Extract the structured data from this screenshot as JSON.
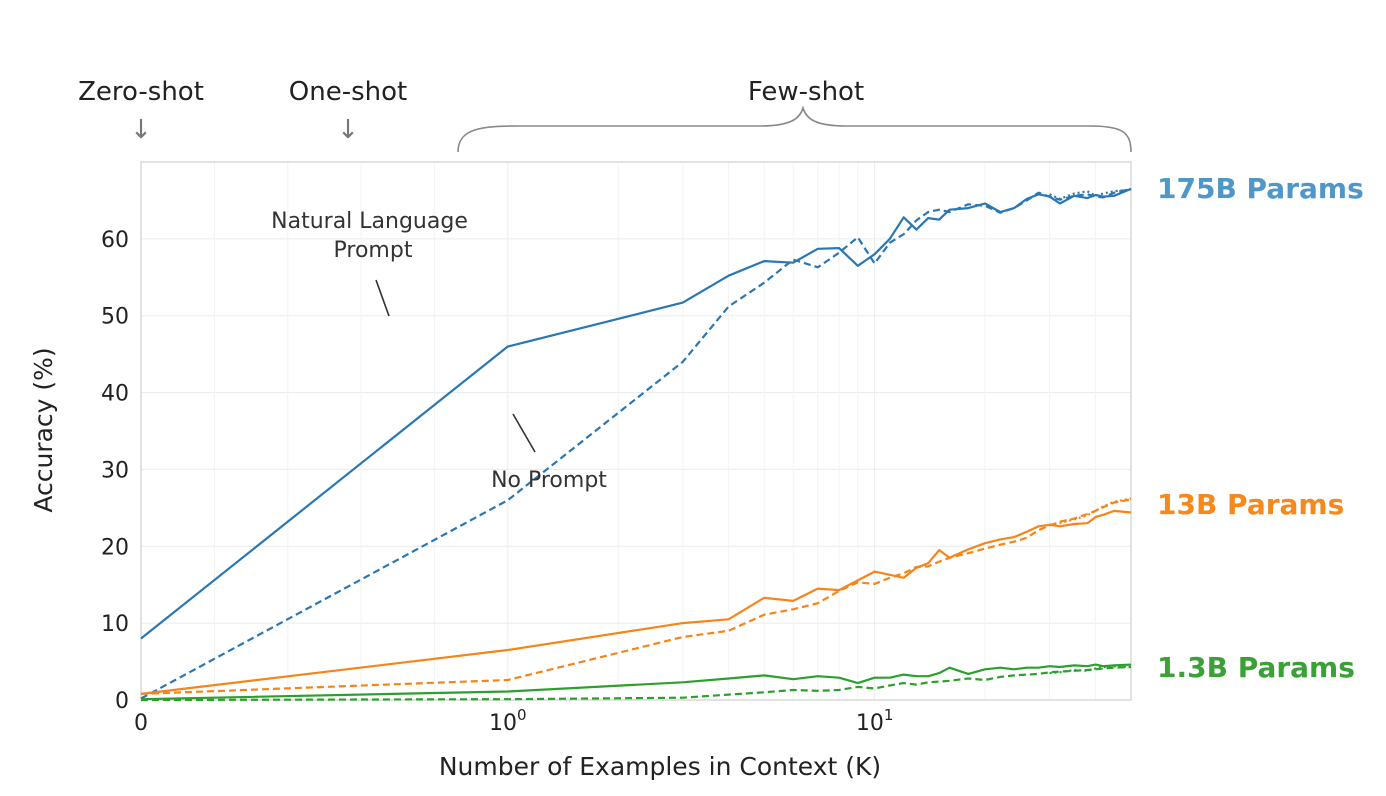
{
  "chart_data": {
    "type": "line",
    "xlabel": "Number of Examples in Context  (K)",
    "ylabel": "Accuracy (%)",
    "x_scale": "symlog",
    "xlim": [
      0,
      50
    ],
    "ylim": [
      0,
      70
    ],
    "y_ticks": [
      0,
      10,
      20,
      30,
      40,
      50,
      60
    ],
    "x_ticks": [
      {
        "value": 0,
        "label": "0",
        "exp": ""
      },
      {
        "value": 1,
        "label": "10",
        "exp": "0"
      },
      {
        "value": 10,
        "label": "10",
        "exp": "1"
      }
    ],
    "grid": true,
    "regions": [
      {
        "label": "Zero-shot",
        "marker": "↓"
      },
      {
        "label": "One-shot",
        "marker": "↓"
      },
      {
        "label": "Few-shot",
        "marker": "brace"
      }
    ],
    "annotations": [
      {
        "text_lines": [
          "Natural Language",
          "Prompt"
        ]
      },
      {
        "text_lines": [
          "No Prompt"
        ]
      }
    ],
    "model_labels": [
      {
        "text": "175B Params",
        "color": "#4f97c8"
      },
      {
        "text": "13B Params",
        "color": "#f5891e"
      },
      {
        "text": "1.3B Params",
        "color": "#3aa136"
      }
    ],
    "colors": {
      "175B": "#2a77b4",
      "13B": "#f58518",
      "1.3B": "#2ca02c"
    },
    "series": [
      {
        "model": "175B",
        "style": "solid",
        "x": [
          0,
          1,
          3,
          4,
          5,
          6,
          7,
          8,
          9,
          10,
          11,
          12,
          13,
          14,
          15,
          16,
          18,
          20,
          22,
          24,
          26,
          28,
          30,
          32,
          35,
          38,
          40,
          42,
          45,
          50
        ],
        "y": [
          8,
          46,
          51.7,
          55.2,
          57.1,
          56.9,
          58.7,
          58.8,
          56.5,
          58,
          60,
          62.8,
          61.2,
          62.7,
          62.5,
          63.8,
          64,
          64.6,
          63.5,
          64,
          65.2,
          65.8,
          65.5,
          64.6,
          65.6,
          65.3,
          65.7,
          65.5,
          65.6,
          66.5
        ]
      },
      {
        "model": "175B",
        "style": "dashed",
        "x": [
          0,
          1,
          3,
          4,
          5,
          6,
          7,
          8,
          9,
          10,
          11,
          12,
          13,
          14,
          15,
          16,
          18,
          20,
          22,
          24,
          26,
          28,
          30,
          32,
          35,
          38,
          40,
          42,
          45,
          50
        ],
        "y": [
          0.2,
          26,
          44,
          51.2,
          54.3,
          57.3,
          56.3,
          58.2,
          60.2,
          56.8,
          59.5,
          60.6,
          62.4,
          63.5,
          63.8,
          63.5,
          64.5,
          64.3,
          63.4,
          64,
          65,
          66,
          65.5,
          65.1,
          65.6,
          65.8,
          65.5,
          65.4,
          66,
          66.5
        ]
      },
      {
        "model": "175B",
        "style": "dotted",
        "x": [
          30,
          32,
          35,
          38,
          40,
          42,
          45,
          50
        ],
        "y": [
          65.8,
          65.2,
          65.9,
          66.2,
          65.6,
          65.9,
          66.2,
          66.4
        ]
      },
      {
        "model": "13B",
        "style": "solid",
        "x": [
          0,
          1,
          3,
          4,
          5,
          6,
          7,
          8,
          10,
          12,
          13,
          14,
          15,
          16,
          18,
          20,
          22,
          24,
          26,
          28,
          30,
          32,
          35,
          38,
          40,
          42,
          45,
          50
        ],
        "y": [
          0.8,
          6.5,
          10,
          10.5,
          13.3,
          12.9,
          14.5,
          14.3,
          16.7,
          15.9,
          17.2,
          17.8,
          19.5,
          18.5,
          19.6,
          20.4,
          20.9,
          21.2,
          21.9,
          22.6,
          22.8,
          22.6,
          22.9,
          23,
          23.8,
          24.1,
          24.6,
          24.4
        ]
      },
      {
        "model": "13B",
        "style": "dashed",
        "x": [
          0,
          1,
          3,
          4,
          5,
          6,
          7,
          8,
          9,
          10,
          11,
          12,
          13,
          14,
          15,
          16,
          18,
          20,
          22,
          24,
          26,
          28,
          30,
          32,
          35,
          38,
          40,
          42,
          45,
          50
        ],
        "y": [
          0.8,
          2.6,
          8.2,
          9,
          11.1,
          11.8,
          12.6,
          14.2,
          15.3,
          15.1,
          15.9,
          16.5,
          17.3,
          17.4,
          18,
          18.5,
          19.1,
          19.7,
          20.2,
          20.6,
          21.1,
          22.1,
          22.7,
          23.2,
          23.6,
          24.2,
          24.6,
          25.1,
          25.7,
          26.1
        ]
      },
      {
        "model": "13B",
        "style": "dotted",
        "x": [
          30,
          32,
          35,
          38,
          40,
          42,
          45,
          50
        ],
        "y": [
          22.8,
          23,
          23.5,
          24,
          24.6,
          25.2,
          25.8,
          26.2
        ]
      },
      {
        "model": "1.3B",
        "style": "solid",
        "x": [
          0,
          1,
          3,
          4,
          5,
          6,
          7,
          8,
          9,
          10,
          11,
          12,
          13,
          14,
          15,
          16,
          18,
          20,
          22,
          24,
          26,
          28,
          30,
          32,
          35,
          38,
          40,
          42,
          45,
          50
        ],
        "y": [
          0.1,
          1.1,
          2.3,
          2.8,
          3.2,
          2.7,
          3.1,
          2.9,
          2.2,
          2.9,
          2.9,
          3.3,
          3.1,
          3.1,
          3.5,
          4.2,
          3.4,
          4,
          4.2,
          4,
          4.2,
          4.2,
          4.4,
          4.3,
          4.5,
          4.4,
          4.6,
          4.4,
          4.5,
          4.6
        ]
      },
      {
        "model": "1.3B",
        "style": "dashed",
        "x": [
          0,
          1,
          3,
          4,
          5,
          6,
          7,
          8,
          9,
          10,
          11,
          12,
          13,
          14,
          15,
          16,
          18,
          20,
          22,
          24,
          26,
          28,
          30,
          32,
          35,
          38,
          40,
          42,
          45,
          50
        ],
        "y": [
          0,
          0.1,
          0.3,
          0.7,
          1,
          1.3,
          1.2,
          1.3,
          1.7,
          1.5,
          1.9,
          2.2,
          2,
          2.3,
          2.4,
          2.5,
          2.8,
          2.6,
          3,
          3.2,
          3.3,
          3.4,
          3.6,
          3.7,
          3.8,
          3.9,
          4,
          4.1,
          4.2,
          4.3
        ]
      },
      {
        "model": "1.3B",
        "style": "dotted",
        "x": [
          30,
          32,
          35,
          38,
          40,
          42,
          45,
          50
        ],
        "y": [
          3.5,
          3.6,
          3.9,
          3.8,
          4.1,
          4.3,
          4.4,
          4.3
        ]
      }
    ]
  }
}
